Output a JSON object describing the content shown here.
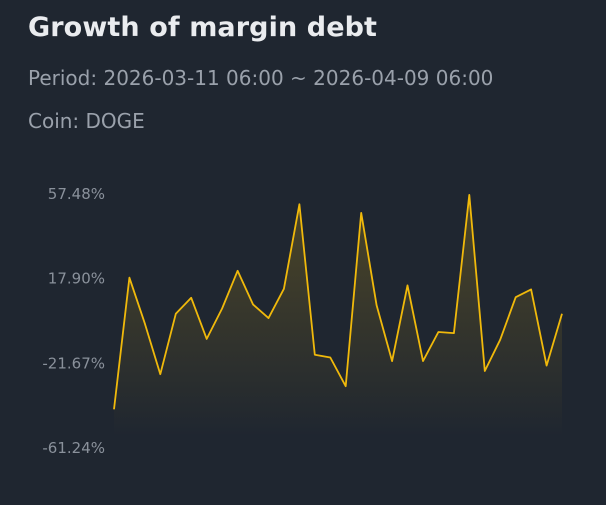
{
  "header": {
    "title": "Growth of margin debt",
    "period_label": "Period:",
    "period_value": "2026-03-11 06:00 ~ 2026-04-09 06:00",
    "coin_label": "Coin:",
    "coin_value": "DOGE"
  },
  "colors": {
    "background": "#1f2630",
    "line": "#f0b90b",
    "title": "#eaecef",
    "muted": "#9aa1ab"
  },
  "chart_data": {
    "type": "area",
    "title": "Growth of margin debt",
    "xlabel": "",
    "ylabel": "",
    "grid": false,
    "legend": "none",
    "ylim": [
      -61.24,
      57.48
    ],
    "y_ticks": [
      57.48,
      17.9,
      -21.67,
      -61.24
    ],
    "y_tick_labels": [
      "57.48%",
      "17.90%",
      "-21.67%",
      "-61.24%"
    ],
    "series": [
      {
        "values": [
          -43.6,
          17.9,
          -3.6,
          -27.2,
          1.0,
          8.5,
          -10.7,
          3.5,
          21.1,
          5.4,
          -1.0,
          12.7,
          52.2,
          -18.1,
          -19.4,
          -32.8,
          48.2,
          5.0,
          -21.1,
          14.3,
          -21.1,
          -7.5,
          -8.0,
          56.6,
          -25.7,
          -11.1,
          8.8,
          12.4,
          -23.2,
          1.0
        ]
      }
    ]
  }
}
